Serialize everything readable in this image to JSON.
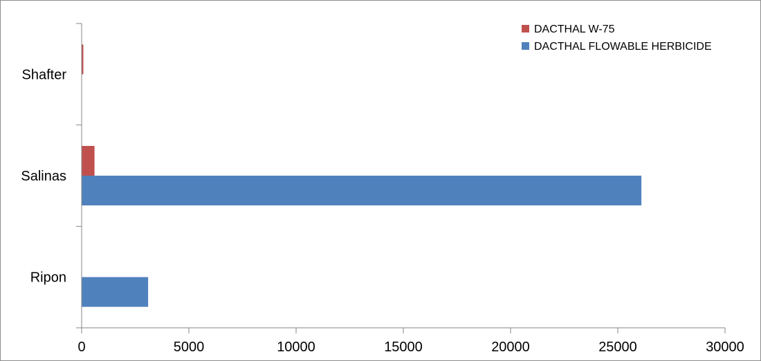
{
  "chart_data": {
    "type": "bar",
    "orientation": "horizontal",
    "title": "",
    "xlabel": "",
    "ylabel": "",
    "categories": [
      "Ripon",
      "Salinas",
      "Shafter"
    ],
    "series": [
      {
        "name": "DACTHAL FLOWABLE HERBICIDE",
        "color": "#4f81bd",
        "values": [
          3100,
          26100,
          null
        ]
      },
      {
        "name": "DACTHAL W-75",
        "color": "#c0504d",
        "values": [
          null,
          600,
          80
        ]
      }
    ],
    "xlim": [
      0,
      30000
    ],
    "x_ticks": [
      "0",
      "5000",
      "10000",
      "15000",
      "20000",
      "25000",
      "30000"
    ],
    "grid": false,
    "legend": {
      "position": "top-right",
      "items": [
        "DACTHAL W-75",
        "DACTHAL FLOWABLE HERBICIDE"
      ]
    }
  }
}
